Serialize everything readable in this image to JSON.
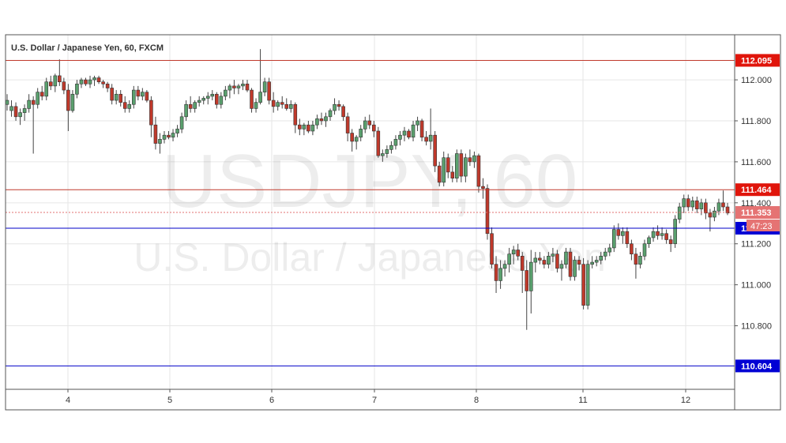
{
  "chart_data": {
    "type": "candlestick",
    "title": "U.S. Dollar / Japanese Yen, 60, FXCM",
    "watermark_symbol": "USDJPY, 60",
    "watermark_name": "U.S. Dollar / Japanese Yen",
    "x_ticks": [
      "4",
      "5",
      "6",
      "7",
      "8",
      "11",
      "12"
    ],
    "y_ticks": [
      "112.000",
      "111.800",
      "111.600",
      "111.400",
      "111.200",
      "111.000",
      "110.800"
    ],
    "ylim": [
      110.49,
      112.22
    ],
    "grid": true,
    "colors": {
      "up": "#5aa06e",
      "down": "#c0392b",
      "resistance": "#c0392b",
      "support": "#0000c8",
      "current": "#e07070"
    },
    "levels": [
      {
        "label": "112.095",
        "value": 112.095,
        "kind": "resistance"
      },
      {
        "label": "111.464",
        "value": 111.464,
        "kind": "resistance"
      },
      {
        "label": "111.276",
        "value": 111.276,
        "kind": "support"
      },
      {
        "label": "110.604",
        "value": 110.604,
        "kind": "support"
      }
    ],
    "current_price": {
      "label": "111.353",
      "value": 111.353,
      "countdown": "47:23"
    },
    "candles": [
      [
        111.88,
        111.93,
        111.85,
        111.9
      ],
      [
        111.85,
        111.9,
        111.82,
        111.87
      ],
      [
        111.87,
        111.89,
        111.8,
        111.82
      ],
      [
        111.82,
        111.86,
        111.78,
        111.84
      ],
      [
        111.84,
        111.88,
        111.8,
        111.86
      ],
      [
        111.86,
        111.93,
        111.84,
        111.9
      ],
      [
        111.9,
        111.92,
        111.64,
        111.88
      ],
      [
        111.88,
        111.96,
        111.86,
        111.94
      ],
      [
        111.94,
        111.97,
        111.9,
        111.92
      ],
      [
        111.92,
        112.01,
        111.9,
        111.99
      ],
      [
        111.99,
        112.02,
        111.95,
        111.97
      ],
      [
        111.97,
        112.03,
        111.94,
        112.02
      ],
      [
        112.02,
        112.1,
        111.97,
        111.99
      ],
      [
        111.99,
        112.01,
        111.93,
        111.95
      ],
      [
        111.95,
        111.98,
        111.75,
        111.85
      ],
      [
        111.85,
        111.95,
        111.84,
        111.93
      ],
      [
        111.93,
        112.0,
        111.91,
        111.98
      ],
      [
        111.98,
        112.01,
        111.96,
        112.0
      ],
      [
        112.0,
        112.01,
        111.97,
        111.98
      ],
      [
        111.98,
        112.02,
        111.96,
        112.0
      ],
      [
        112.0,
        112.02,
        111.97,
        112.01
      ],
      [
        112.01,
        112.02,
        111.98,
        111.99
      ],
      [
        111.99,
        112.0,
        111.96,
        111.98
      ],
      [
        111.98,
        111.99,
        111.94,
        111.96
      ],
      [
        111.96,
        111.98,
        111.88,
        111.9
      ],
      [
        111.9,
        111.95,
        111.88,
        111.93
      ],
      [
        111.93,
        111.95,
        111.87,
        111.89
      ],
      [
        111.89,
        111.92,
        111.84,
        111.86
      ],
      [
        111.86,
        111.9,
        111.84,
        111.88
      ],
      [
        111.88,
        111.97,
        111.86,
        111.95
      ],
      [
        111.95,
        111.97,
        111.9,
        111.92
      ],
      [
        111.92,
        111.96,
        111.9,
        111.94
      ],
      [
        111.94,
        111.95,
        111.89,
        111.9
      ],
      [
        111.9,
        111.92,
        111.72,
        111.78
      ],
      [
        111.78,
        111.82,
        111.66,
        111.69
      ],
      [
        111.69,
        111.74,
        111.64,
        111.71
      ],
      [
        111.71,
        111.75,
        111.69,
        111.73
      ],
      [
        111.73,
        111.75,
        111.71,
        111.72
      ],
      [
        111.72,
        111.76,
        111.7,
        111.74
      ],
      [
        111.74,
        111.78,
        111.72,
        111.76
      ],
      [
        111.76,
        111.84,
        111.74,
        111.82
      ],
      [
        111.82,
        111.9,
        111.8,
        111.88
      ],
      [
        111.88,
        111.92,
        111.84,
        111.86
      ],
      [
        111.86,
        111.9,
        111.84,
        111.89
      ],
      [
        111.89,
        111.92,
        111.87,
        111.9
      ],
      [
        111.9,
        111.92,
        111.88,
        111.91
      ],
      [
        111.91,
        111.94,
        111.88,
        111.92
      ],
      [
        111.92,
        111.95,
        111.9,
        111.93
      ],
      [
        111.93,
        111.94,
        111.86,
        111.88
      ],
      [
        111.88,
        111.94,
        111.86,
        111.92
      ],
      [
        111.92,
        111.97,
        111.9,
        111.95
      ],
      [
        111.95,
        111.98,
        111.91,
        111.97
      ],
      [
        111.97,
        112.0,
        111.93,
        111.96
      ],
      [
        111.96,
        111.98,
        111.93,
        111.97
      ],
      [
        111.97,
        112.0,
        111.95,
        111.98
      ],
      [
        111.98,
        112.0,
        111.94,
        111.95
      ],
      [
        111.95,
        111.96,
        111.84,
        111.86
      ],
      [
        111.86,
        111.91,
        111.84,
        111.89
      ],
      [
        111.89,
        112.15,
        111.88,
        111.94
      ],
      [
        111.94,
        112.01,
        111.92,
        111.99
      ],
      [
        111.99,
        112.01,
        111.88,
        111.9
      ],
      [
        111.9,
        111.94,
        111.84,
        111.87
      ],
      [
        111.87,
        111.9,
        111.85,
        111.89
      ],
      [
        111.89,
        111.92,
        111.86,
        111.88
      ],
      [
        111.88,
        111.91,
        111.85,
        111.86
      ],
      [
        111.86,
        111.9,
        111.84,
        111.88
      ],
      [
        111.88,
        111.89,
        111.74,
        111.78
      ],
      [
        111.78,
        111.81,
        111.73,
        111.76
      ],
      [
        111.76,
        111.79,
        111.73,
        111.78
      ],
      [
        111.78,
        111.8,
        111.74,
        111.75
      ],
      [
        111.75,
        111.8,
        111.73,
        111.78
      ],
      [
        111.78,
        111.83,
        111.76,
        111.81
      ],
      [
        111.81,
        111.84,
        111.78,
        111.8
      ],
      [
        111.8,
        111.84,
        111.77,
        111.82
      ],
      [
        111.82,
        111.86,
        111.8,
        111.85
      ],
      [
        111.85,
        111.91,
        111.83,
        111.88
      ],
      [
        111.88,
        111.9,
        111.85,
        111.87
      ],
      [
        111.87,
        111.88,
        111.8,
        111.82
      ],
      [
        111.82,
        111.84,
        111.7,
        111.74
      ],
      [
        111.74,
        111.76,
        111.65,
        111.7
      ],
      [
        111.7,
        111.73,
        111.66,
        111.72
      ],
      [
        111.72,
        111.78,
        111.7,
        111.76
      ],
      [
        111.76,
        111.82,
        111.74,
        111.8
      ],
      [
        111.8,
        111.83,
        111.76,
        111.78
      ],
      [
        111.78,
        111.8,
        111.72,
        111.75
      ],
      [
        111.75,
        111.77,
        111.62,
        111.63
      ],
      [
        111.63,
        111.66,
        111.6,
        111.64
      ],
      [
        111.64,
        111.68,
        111.62,
        111.66
      ],
      [
        111.66,
        111.7,
        111.64,
        111.68
      ],
      [
        111.68,
        111.73,
        111.66,
        111.71
      ],
      [
        111.71,
        111.75,
        111.68,
        111.73
      ],
      [
        111.73,
        111.77,
        111.7,
        111.75
      ],
      [
        111.75,
        111.76,
        111.71,
        111.72
      ],
      [
        111.72,
        111.8,
        111.7,
        111.78
      ],
      [
        111.78,
        111.82,
        111.75,
        111.8
      ],
      [
        111.8,
        111.81,
        111.7,
        111.72
      ],
      [
        111.72,
        111.75,
        111.68,
        111.7
      ],
      [
        111.7,
        111.86,
        111.66,
        111.73
      ],
      [
        111.73,
        111.75,
        111.55,
        111.58
      ],
      [
        111.58,
        111.6,
        111.48,
        111.5
      ],
      [
        111.5,
        111.65,
        111.48,
        111.62
      ],
      [
        111.62,
        111.64,
        111.52,
        111.55
      ],
      [
        111.55,
        111.58,
        111.5,
        111.52
      ],
      [
        111.52,
        111.66,
        111.5,
        111.64
      ],
      [
        111.64,
        111.66,
        111.5,
        111.53
      ],
      [
        111.53,
        111.64,
        111.5,
        111.62
      ],
      [
        111.62,
        111.66,
        111.58,
        111.6
      ],
      [
        111.6,
        111.65,
        111.57,
        111.63
      ],
      [
        111.63,
        111.64,
        111.45,
        111.48
      ],
      [
        111.48,
        111.52,
        111.42,
        111.47
      ],
      [
        111.47,
        111.49,
        111.22,
        111.25
      ],
      [
        111.25,
        111.28,
        111.08,
        111.1
      ],
      [
        111.1,
        111.14,
        110.96,
        111.02
      ],
      [
        111.02,
        111.12,
        110.98,
        111.08
      ],
      [
        111.08,
        111.12,
        111.04,
        111.1
      ],
      [
        111.1,
        111.18,
        111.06,
        111.15
      ],
      [
        111.15,
        111.19,
        111.1,
        111.17
      ],
      [
        111.17,
        111.2,
        111.12,
        111.14
      ],
      [
        111.14,
        111.16,
        110.96,
        111.07
      ],
      [
        111.07,
        111.12,
        110.78,
        110.97
      ],
      [
        110.97,
        111.17,
        110.86,
        111.11
      ],
      [
        111.11,
        111.16,
        111.06,
        111.13
      ],
      [
        111.13,
        111.16,
        111.1,
        111.12
      ],
      [
        111.12,
        111.14,
        111.08,
        111.1
      ],
      [
        111.1,
        111.16,
        111.08,
        111.14
      ],
      [
        111.14,
        111.18,
        111.11,
        111.15
      ],
      [
        111.15,
        111.17,
        111.06,
        111.08
      ],
      [
        111.08,
        111.12,
        111.02,
        111.1
      ],
      [
        111.1,
        111.18,
        111.08,
        111.16
      ],
      [
        111.16,
        111.18,
        111.02,
        111.04
      ],
      [
        111.04,
        111.14,
        111.02,
        111.12
      ],
      [
        111.12,
        111.14,
        111.07,
        111.1
      ],
      [
        111.1,
        111.13,
        110.88,
        110.9
      ],
      [
        110.9,
        111.12,
        110.88,
        111.1
      ],
      [
        111.1,
        111.14,
        111.08,
        111.11
      ],
      [
        111.11,
        111.14,
        111.09,
        111.12
      ],
      [
        111.12,
        111.16,
        111.1,
        111.14
      ],
      [
        111.14,
        111.18,
        111.12,
        111.16
      ],
      [
        111.16,
        111.2,
        111.14,
        111.18
      ],
      [
        111.18,
        111.29,
        111.16,
        111.27
      ],
      [
        111.27,
        111.3,
        111.22,
        111.24
      ],
      [
        111.24,
        111.28,
        111.2,
        111.26
      ],
      [
        111.26,
        111.28,
        111.18,
        111.2
      ],
      [
        111.2,
        111.22,
        111.12,
        111.15
      ],
      [
        111.15,
        111.18,
        111.03,
        111.1
      ],
      [
        111.1,
        111.16,
        111.08,
        111.14
      ],
      [
        111.14,
        111.22,
        111.12,
        111.2
      ],
      [
        111.2,
        111.24,
        111.18,
        111.23
      ],
      [
        111.23,
        111.28,
        111.21,
        111.26
      ],
      [
        111.26,
        111.29,
        111.22,
        111.24
      ],
      [
        111.24,
        111.28,
        111.22,
        111.25
      ],
      [
        111.25,
        111.27,
        111.2,
        111.22
      ],
      [
        111.22,
        111.24,
        111.16,
        111.2
      ],
      [
        111.2,
        111.34,
        111.18,
        111.32
      ],
      [
        111.32,
        111.4,
        111.3,
        111.38
      ],
      [
        111.38,
        111.44,
        111.35,
        111.42
      ],
      [
        111.42,
        111.44,
        111.36,
        111.38
      ],
      [
        111.38,
        111.43,
        111.36,
        111.41
      ],
      [
        111.41,
        111.43,
        111.35,
        111.37
      ],
      [
        111.37,
        111.42,
        111.34,
        111.4
      ],
      [
        111.4,
        111.42,
        111.32,
        111.35
      ],
      [
        111.35,
        111.37,
        111.26,
        111.33
      ],
      [
        111.33,
        111.38,
        111.31,
        111.36
      ],
      [
        111.36,
        111.42,
        111.34,
        111.4
      ],
      [
        111.4,
        111.46,
        111.36,
        111.38
      ],
      [
        111.38,
        111.4,
        111.34,
        111.35
      ]
    ]
  }
}
